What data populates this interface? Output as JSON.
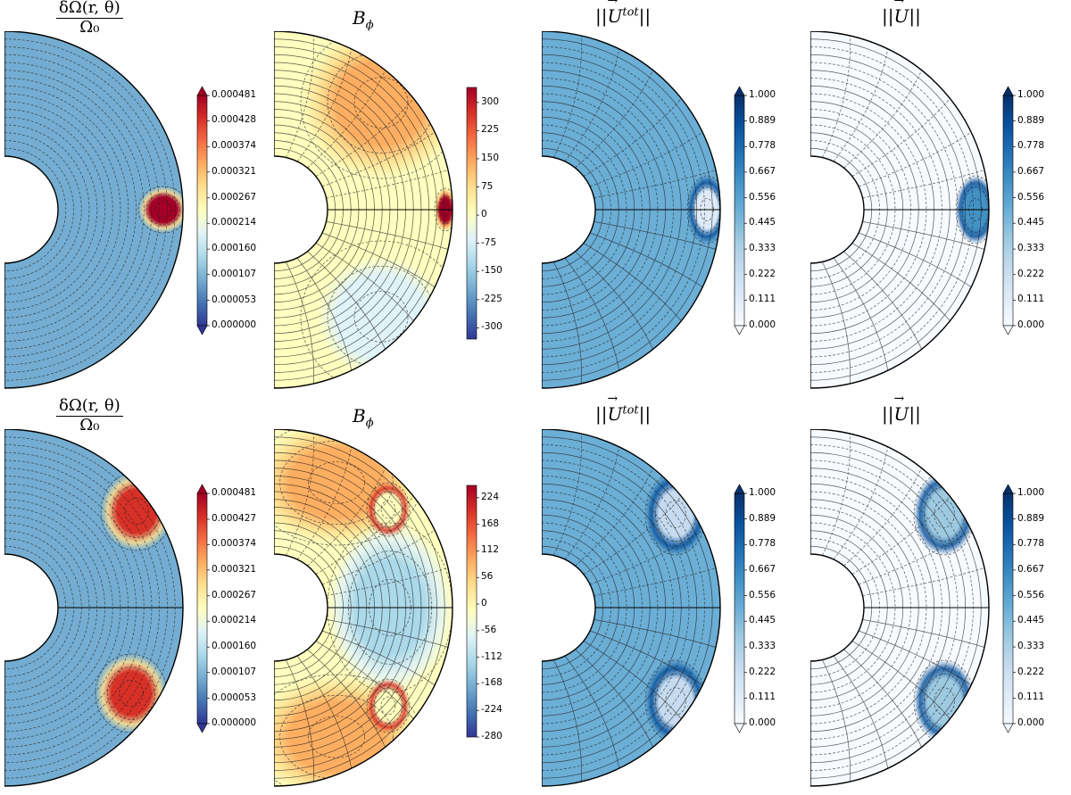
{
  "figure": {
    "rows": [
      {
        "panels": [
          {
            "key": "omega",
            "title_num": "δΩ(r, θ)",
            "title_den": "Ω₀",
            "colormap": "RdYlBu_r",
            "colorbar_extend": "both",
            "colorbar_ticks": [
              "0.000481",
              "0.000428",
              "0.000374",
              "0.000321",
              "0.000267",
              "0.000214",
              "0.000160",
              "0.000107",
              "0.000053",
              "0.000000"
            ],
            "colorbar_range": [
              0.0,
              0.000481
            ]
          },
          {
            "key": "bphi",
            "title": "B",
            "title_sub": "ϕ",
            "colormap": "RdYlBu_r",
            "colorbar_extend": "neither",
            "colorbar_ticks": [
              "300",
              "225",
              "150",
              "75",
              "0",
              "-75",
              "-150",
              "-225",
              "-300"
            ],
            "colorbar_range": [
              -330,
              340
            ]
          },
          {
            "key": "utot",
            "title_pre": "||",
            "title_vec": "U",
            "title_sup": "tot",
            "title_post": "||",
            "colormap": "Blues",
            "colorbar_extend": "both",
            "colorbar_ticks": [
              "1.000",
              "0.889",
              "0.778",
              "0.667",
              "0.556",
              "0.445",
              "0.333",
              "0.222",
              "0.111",
              "0.000"
            ],
            "colorbar_range": [
              0.0,
              1.0
            ]
          },
          {
            "key": "u",
            "title_pre": "||",
            "title_vec": "U",
            "title_sup": "",
            "title_post": "||",
            "colormap": "Blues",
            "colorbar_extend": "both",
            "colorbar_ticks": [
              "1.000",
              "0.889",
              "0.778",
              "0.667",
              "0.556",
              "0.445",
              "0.333",
              "0.222",
              "0.111",
              "0.000"
            ],
            "colorbar_range": [
              0.0,
              1.0
            ]
          }
        ]
      },
      {
        "panels": [
          {
            "key": "omega",
            "title_num": "δΩ(r, θ)",
            "title_den": "Ω₀",
            "colormap": "RdYlBu_r",
            "colorbar_extend": "both",
            "colorbar_ticks": [
              "0.000481",
              "0.000427",
              "0.000374",
              "0.000321",
              "0.000267",
              "0.000214",
              "0.000160",
              "0.000107",
              "0.000053",
              "0.000000"
            ],
            "colorbar_range": [
              0.0,
              0.000481
            ]
          },
          {
            "key": "bphi",
            "title": "B",
            "title_sub": "ϕ",
            "colormap": "RdYlBu_r",
            "colorbar_extend": "neither",
            "colorbar_ticks": [
              "224",
              "168",
              "112",
              "56",
              "0",
              "-56",
              "-112",
              "-168",
              "-224",
              "-280"
            ],
            "colorbar_range": [
              -280,
              250
            ]
          },
          {
            "key": "utot",
            "title_pre": "||",
            "title_vec": "U",
            "title_sup": "tot",
            "title_post": "||",
            "colormap": "Blues",
            "colorbar_extend": "both",
            "colorbar_ticks": [
              "1.000",
              "0.889",
              "0.778",
              "0.667",
              "0.556",
              "0.445",
              "0.333",
              "0.222",
              "0.111",
              "0.000"
            ],
            "colorbar_range": [
              0.0,
              1.0
            ]
          },
          {
            "key": "u",
            "title_pre": "||",
            "title_vec": "U",
            "title_sup": "",
            "title_post": "||",
            "colormap": "Blues",
            "colorbar_extend": "both",
            "colorbar_ticks": [
              "1.000",
              "0.889",
              "0.778",
              "0.667",
              "0.556",
              "0.445",
              "0.333",
              "0.222",
              "0.111",
              "0.000"
            ],
            "colorbar_range": [
              0.0,
              1.0
            ]
          }
        ]
      }
    ]
  },
  "chart_data": [
    {
      "type": "heatmap",
      "geometry": "meridional half-annulus",
      "title": "δΩ(r, θ) / Ω₀",
      "colorbar": {
        "min": 0.0,
        "max": 0.000481
      },
      "features": [
        "single hot spot at equator near outer radius"
      ]
    },
    {
      "type": "heatmap",
      "geometry": "meridional half-annulus",
      "title": "B_ϕ",
      "colorbar": {
        "min": -300,
        "max": 300
      },
      "features": [
        "antisymmetric about equator",
        "strong concentration at equator near outer radius"
      ]
    },
    {
      "type": "heatmap",
      "geometry": "meridional half-annulus",
      "title": "||U^tot||",
      "colorbar": {
        "min": 0.0,
        "max": 1.0
      }
    },
    {
      "type": "heatmap",
      "geometry": "meridional half-annulus",
      "title": "||U||",
      "colorbar": {
        "min": 0.0,
        "max": 1.0
      }
    },
    {
      "type": "heatmap",
      "geometry": "meridional half-annulus",
      "title": "δΩ(r, θ) / Ω₀",
      "colorbar": {
        "min": 0.0,
        "max": 0.000481
      },
      "features": [
        "two hot spots at mid-latitudes"
      ]
    },
    {
      "type": "heatmap",
      "geometry": "meridional half-annulus",
      "title": "B_ϕ",
      "colorbar": {
        "min": -280,
        "max": 224
      },
      "features": [
        "two concentrations at mid-latitudes"
      ]
    },
    {
      "type": "heatmap",
      "geometry": "meridional half-annulus",
      "title": "||U^tot||",
      "colorbar": {
        "min": 0.0,
        "max": 1.0
      }
    },
    {
      "type": "heatmap",
      "geometry": "meridional half-annulus",
      "title": "||U||",
      "colorbar": {
        "min": 0.0,
        "max": 1.0
      }
    }
  ]
}
